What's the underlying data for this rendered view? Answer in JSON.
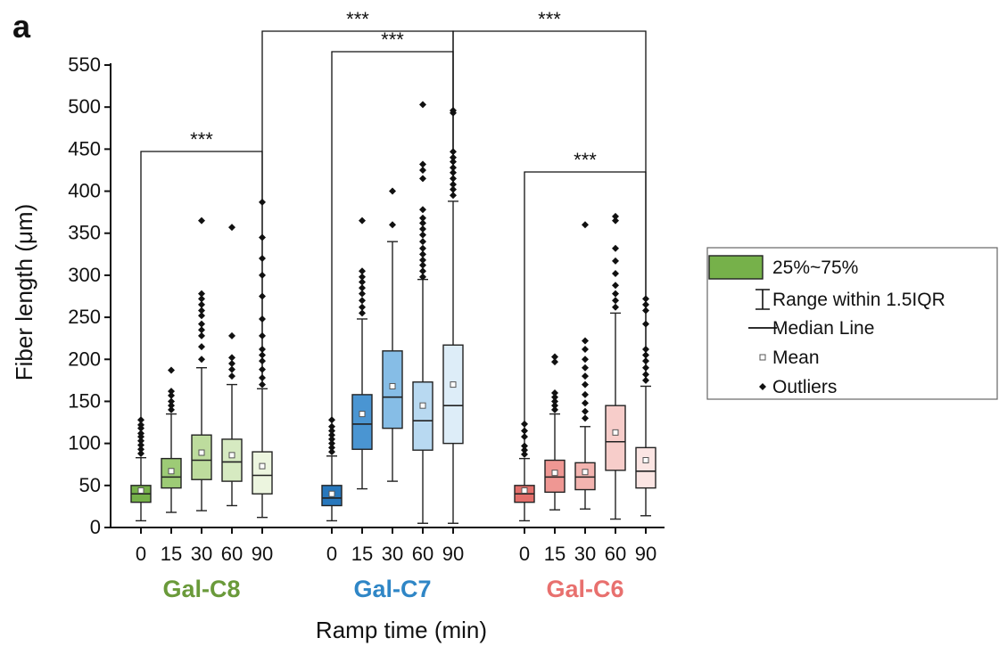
{
  "chart_data": {
    "type": "box",
    "panel_label": "a",
    "ylabel": "Fiber length (μm)",
    "xlabel": "Ramp time (min)",
    "ylim": [
      0,
      550
    ],
    "yticks": [
      0,
      50,
      100,
      150,
      200,
      250,
      300,
      350,
      400,
      450,
      500,
      550
    ],
    "legend": {
      "placement": "right",
      "items": [
        {
          "symbol": "box",
          "label": "25%~75%"
        },
        {
          "symbol": "whisker",
          "label": "Range within 1.5IQR"
        },
        {
          "symbol": "line",
          "label": "Median Line"
        },
        {
          "symbol": "mean",
          "label": "Mean"
        },
        {
          "symbol": "outlier",
          "label": "Outliers"
        }
      ]
    },
    "groups": [
      {
        "name": "Gal-C8",
        "color": "#6a9a3a",
        "boxes": [
          {
            "category": "0",
            "fill": "#76b14a",
            "whisker_low": 8,
            "q1": 30,
            "median": 40,
            "mean": 44,
            "q3": 50,
            "whisker_high": 83,
            "outliers": [
              88,
              93,
              98,
              103,
              108,
              112,
              118,
              122,
              128
            ]
          },
          {
            "category": "15",
            "fill": "#9dcb76",
            "whisker_low": 18,
            "q1": 47,
            "median": 60,
            "mean": 67,
            "q3": 82,
            "whisker_high": 135,
            "outliers": [
              140,
              145,
              150,
              157,
              162,
              187
            ]
          },
          {
            "category": "30",
            "fill": "#bddc9d",
            "whisker_low": 20,
            "q1": 57,
            "median": 80,
            "mean": 89,
            "q3": 110,
            "whisker_high": 190,
            "outliers": [
              200,
              215,
              228,
              235,
              242,
              252,
              258,
              265,
              272,
              278,
              365
            ]
          },
          {
            "category": "60",
            "fill": "#d6eac1",
            "whisker_low": 26,
            "q1": 55,
            "median": 78,
            "mean": 86,
            "q3": 105,
            "whisker_high": 170,
            "outliers": [
              180,
              188,
              195,
              202,
              228,
              357
            ]
          },
          {
            "category": "90",
            "fill": "#ecf5df",
            "whisker_low": 12,
            "q1": 40,
            "median": 62,
            "mean": 73,
            "q3": 90,
            "whisker_high": 165,
            "outliers": [
              170,
              178,
              188,
              198,
              205,
              212,
              228,
              248,
              275,
              300,
              320,
              345,
              387
            ]
          }
        ]
      },
      {
        "name": "Gal-C7",
        "color": "#2f86c6",
        "boxes": [
          {
            "category": "0",
            "fill": "#2878bd",
            "whisker_low": 8,
            "q1": 26,
            "median": 35,
            "mean": 40,
            "q3": 50,
            "whisker_high": 85,
            "outliers": [
              90,
              95,
              100,
              105,
              110,
              115,
              120,
              128
            ]
          },
          {
            "category": "15",
            "fill": "#4a95d2",
            "whisker_low": 46,
            "q1": 93,
            "median": 123,
            "mean": 135,
            "q3": 158,
            "whisker_high": 248,
            "outliers": [
              255,
              262,
              270,
              278,
              285,
              292,
              298,
              305,
              365
            ]
          },
          {
            "category": "30",
            "fill": "#86bde6",
            "whisker_low": 55,
            "q1": 118,
            "median": 155,
            "mean": 168,
            "q3": 210,
            "whisker_high": 340,
            "outliers": [
              360,
              400
            ]
          },
          {
            "category": "60",
            "fill": "#b8d9f1",
            "whisker_low": 5,
            "q1": 92,
            "median": 127,
            "mean": 145,
            "q3": 173,
            "whisker_high": 295,
            "outliers": [
              298,
              305,
              312,
              318,
              325,
              332,
              340,
              348,
              355,
              362,
              368,
              378,
              415,
              425,
              432,
              503
            ]
          },
          {
            "category": "90",
            "fill": "#ddedf8",
            "whisker_low": 5,
            "q1": 100,
            "median": 145,
            "mean": 170,
            "q3": 217,
            "whisker_high": 388,
            "outliers": [
              395,
              402,
              408,
              415,
              422,
              428,
              435,
              440,
              447,
              493,
              496
            ]
          }
        ]
      },
      {
        "name": "Gal-C6",
        "color": "#e8706e",
        "boxes": [
          {
            "category": "0",
            "fill": "#e36f6b",
            "whisker_low": 8,
            "q1": 30,
            "median": 40,
            "mean": 44,
            "q3": 50,
            "whisker_high": 82,
            "outliers": [
              87,
              92,
              97,
              108,
              115,
              123
            ]
          },
          {
            "category": "15",
            "fill": "#ef9793",
            "whisker_low": 21,
            "q1": 42,
            "median": 60,
            "mean": 65,
            "q3": 80,
            "whisker_high": 135,
            "outliers": [
              140,
              145,
              150,
              155,
              160,
              197,
              203
            ]
          },
          {
            "category": "30",
            "fill": "#f3b4b0",
            "whisker_low": 22,
            "q1": 45,
            "median": 60,
            "mean": 66,
            "q3": 77,
            "whisker_high": 120,
            "outliers": [
              130,
              138,
              148,
              158,
              170,
              180,
              190,
              200,
              212,
              222,
              360
            ]
          },
          {
            "category": "60",
            "fill": "#f7cdca",
            "whisker_low": 10,
            "q1": 68,
            "median": 102,
            "mean": 113,
            "q3": 145,
            "whisker_high": 255,
            "outliers": [
              262,
              270,
              278,
              288,
              302,
              317,
              332,
              365,
              370
            ]
          },
          {
            "category": "90",
            "fill": "#fbe5e3",
            "whisker_low": 14,
            "q1": 47,
            "median": 67,
            "mean": 80,
            "q3": 95,
            "whisker_high": 168,
            "outliers": [
              175,
              182,
              190,
              198,
              205,
              212,
              242,
              258,
              265,
              272
            ]
          }
        ]
      }
    ],
    "significance": [
      {
        "from": [
          0,
          0
        ],
        "to": [
          0,
          4
        ],
        "level_y": 170,
        "label": "***"
      },
      {
        "from": [
          1,
          0
        ],
        "to": [
          1,
          4
        ],
        "level_y": 58,
        "label": "***"
      },
      {
        "from": [
          2,
          0
        ],
        "to": [
          2,
          4
        ],
        "level_y": 193,
        "label": "***"
      },
      {
        "from": [
          0,
          4
        ],
        "to": [
          1,
          4
        ],
        "level_y": 35,
        "label": "***"
      },
      {
        "from": [
          1,
          4
        ],
        "to": [
          2,
          4
        ],
        "level_y": 35,
        "label": "***"
      }
    ]
  }
}
